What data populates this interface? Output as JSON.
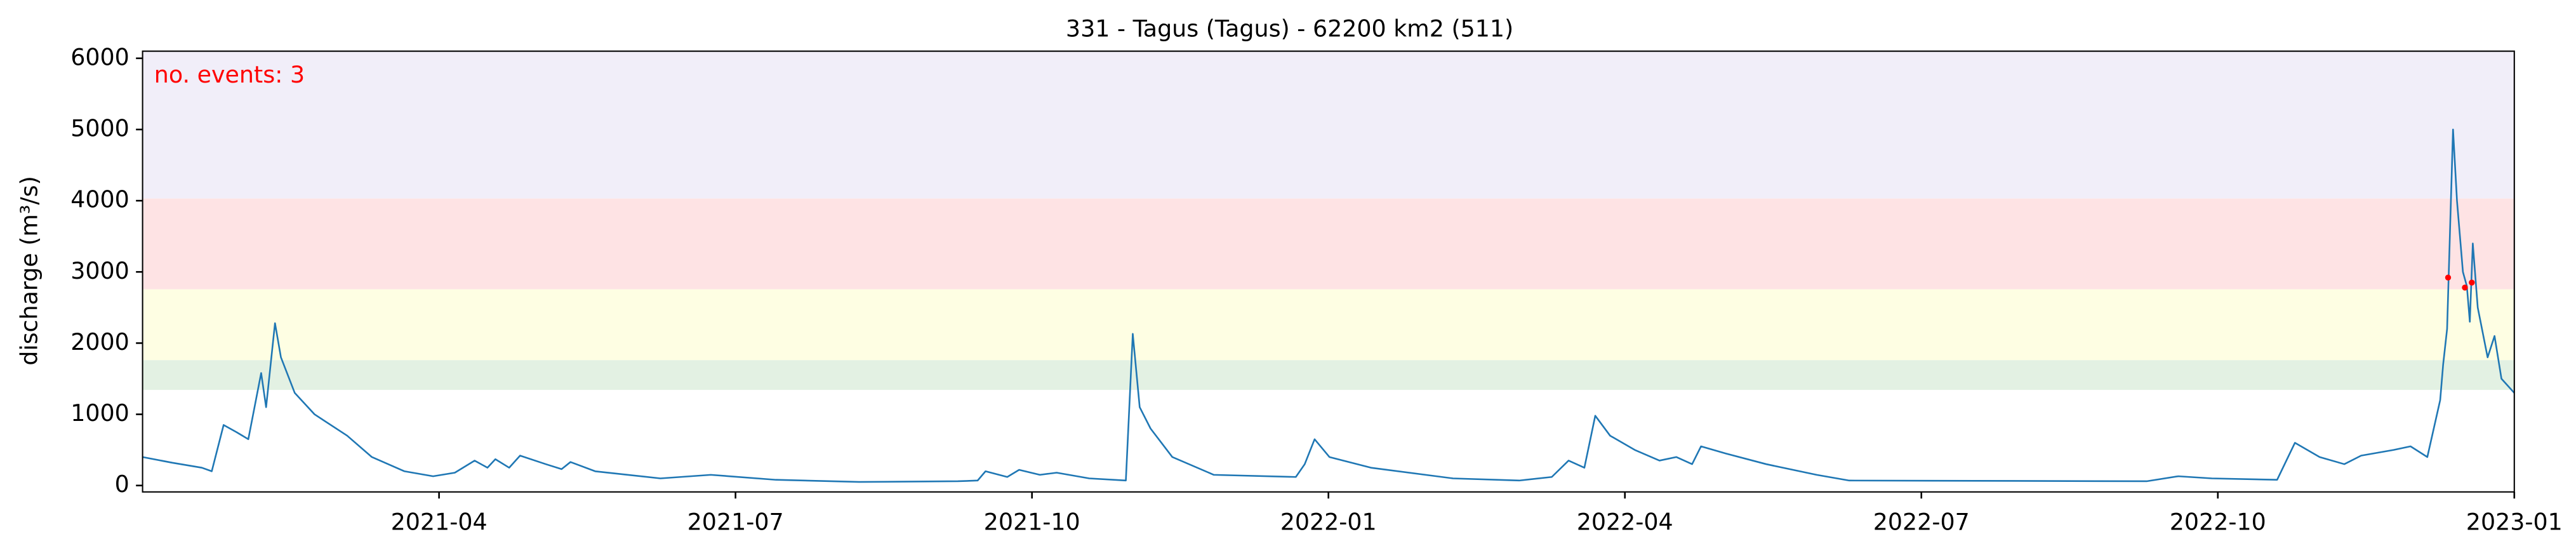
{
  "chart_data": {
    "type": "line",
    "title": "331 - Tagus (Tagus) - 62200 km2 (511)",
    "y_label": "discharge (m³/s)",
    "annotation": "no. events: 3",
    "annotation_color": "red",
    "xlim": [
      0,
      24
    ],
    "xticks": [
      {
        "value": 3,
        "label": "2021-04"
      },
      {
        "value": 6,
        "label": "2021-07"
      },
      {
        "value": 9,
        "label": "2021-10"
      },
      {
        "value": 12,
        "label": "2022-01"
      },
      {
        "value": 15,
        "label": "2022-04"
      },
      {
        "value": 18,
        "label": "2022-07"
      },
      {
        "value": 21,
        "label": "2022-10"
      },
      {
        "value": 24,
        "label": "2023-01"
      }
    ],
    "ylim": [
      -90,
      6100
    ],
    "yticks": [
      0,
      1000,
      2000,
      3000,
      4000,
      5000,
      6000
    ],
    "bands": [
      {
        "from": 4030,
        "to": 6100,
        "color": "#f1eef9"
      },
      {
        "from": 2755,
        "to": 4030,
        "color": "#fee3e4"
      },
      {
        "from": 1760,
        "to": 2755,
        "color": "#fefee3"
      },
      {
        "from": 1343,
        "to": 1760,
        "color": "#e3f1e3"
      }
    ],
    "series": [
      {
        "color": "#1f77b4",
        "x": [
          0,
          0.3,
          0.6,
          0.7,
          0.82,
          0.95,
          1.07,
          1.2,
          1.25,
          1.34,
          1.4,
          1.54,
          1.74,
          2.07,
          2.32,
          2.65,
          2.94,
          3.16,
          3.36,
          3.49,
          3.57,
          3.71,
          3.82,
          4.08,
          4.24,
          4.33,
          4.58,
          5.24,
          5.75,
          6.41,
          7.25,
          8.25,
          8.45,
          8.53,
          8.75,
          8.87,
          9.08,
          9.25,
          9.58,
          9.95,
          10.02,
          10.09,
          10.2,
          10.42,
          10.84,
          11.67,
          11.76,
          11.86,
          12.01,
          12.43,
          13.26,
          13.93,
          14.26,
          14.43,
          14.59,
          14.7,
          14.85,
          15.1,
          15.35,
          15.52,
          15.68,
          15.77,
          16.02,
          16.43,
          16.94,
          17.27,
          20.28,
          20.6,
          20.94,
          21.6,
          21.78,
          22.03,
          22.28,
          22.45,
          22.78,
          22.95,
          23.12,
          23.25,
          23.28,
          23.32,
          23.38,
          23.42,
          23.48,
          23.52,
          23.55,
          23.58,
          23.63,
          23.73,
          23.8,
          23.87,
          24
        ],
        "values": [
          400,
          320,
          250,
          200,
          850,
          750,
          650,
          1580,
          1100,
          2280,
          1800,
          1300,
          1000,
          700,
          400,
          200,
          130,
          180,
          350,
          250,
          370,
          250,
          420,
          300,
          230,
          330,
          200,
          100,
          150,
          80,
          50,
          60,
          70,
          200,
          120,
          220,
          150,
          180,
          100,
          70,
          2130,
          1100,
          800,
          400,
          150,
          120,
          300,
          650,
          400,
          250,
          100,
          70,
          120,
          350,
          250,
          980,
          700,
          500,
          350,
          400,
          300,
          550,
          450,
          300,
          150,
          70,
          60,
          130,
          100,
          80,
          600,
          400,
          300,
          420,
          500,
          550,
          400,
          1200,
          1700,
          2200,
          5000,
          4000,
          3000,
          2800,
          2300,
          3400,
          2500,
          1800,
          2100,
          1500,
          1300
        ]
      },
      {
        "type": "scatter",
        "color": "red",
        "x": [
          23.33,
          23.5,
          23.57
        ],
        "values": [
          2920,
          2780,
          2850
        ]
      }
    ]
  }
}
